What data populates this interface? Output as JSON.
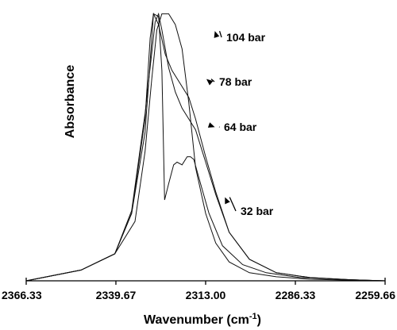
{
  "chart_data": {
    "type": "line",
    "title": "",
    "xlabel": "Wavenumber (cm-1)",
    "xlabel_main": "Wavenumber (cm",
    "xlabel_sup": "-1",
    "xlabel_end": ")",
    "ylabel": "Absorbance",
    "xlim": [
      2366.33,
      2259.66
    ],
    "x_reversed": true,
    "ylim": [
      0,
      1
    ],
    "xticks": [
      2366.33,
      2339.67,
      2313.0,
      2286.33,
      2259.66
    ],
    "xtick_labels": [
      "2366.33",
      "2339.67",
      "2313.00",
      "2286.33",
      "2259.66"
    ],
    "grid": false,
    "series": [
      {
        "name": "104 bar",
        "x": [
          2366.33,
          2350,
          2340,
          2335,
          2331,
          2329,
          2328.5,
          2327,
          2326,
          2325.2,
          2324,
          2322.5,
          2321.5,
          2320,
          2318.5,
          2317.5,
          2316.5,
          2314.5,
          2312,
          2308,
          2302,
          2295,
          2285,
          2270,
          2259.66
        ],
        "y": [
          0.0,
          0.04,
          0.1,
          0.25,
          0.55,
          0.9,
          0.99,
          0.98,
          0.78,
          0.3,
          0.36,
          0.43,
          0.44,
          0.43,
          0.46,
          0.46,
          0.45,
          0.36,
          0.25,
          0.13,
          0.06,
          0.03,
          0.012,
          0.004,
          0.0
        ]
      },
      {
        "name": "78 bar",
        "x": [
          2366.33,
          2350,
          2340,
          2335,
          2331,
          2329.5,
          2328.5,
          2327,
          2325,
          2323,
          2321,
          2318,
          2316,
          2313,
          2310,
          2306,
          2300,
          2292,
          2282,
          2270,
          2259.66
        ],
        "y": [
          0.0,
          0.04,
          0.1,
          0.25,
          0.6,
          0.9,
          0.99,
          0.95,
          0.84,
          0.78,
          0.74,
          0.68,
          0.6,
          0.46,
          0.33,
          0.18,
          0.08,
          0.03,
          0.012,
          0.004,
          0.0
        ]
      },
      {
        "name": "64 bar",
        "x": [
          2366.33,
          2350,
          2340,
          2335,
          2331,
          2328,
          2327,
          2326,
          2324,
          2322,
          2320,
          2318,
          2316,
          2313,
          2310,
          2306,
          2300,
          2292,
          2282,
          2270,
          2259.66
        ],
        "y": [
          0.0,
          0.04,
          0.1,
          0.26,
          0.62,
          0.96,
          0.99,
          0.93,
          0.79,
          0.7,
          0.64,
          0.6,
          0.56,
          0.44,
          0.32,
          0.18,
          0.08,
          0.03,
          0.012,
          0.004,
          0.0
        ]
      },
      {
        "name": "32 bar",
        "x": [
          2366.33,
          2350,
          2340,
          2334,
          2331,
          2329,
          2327.5,
          2326,
          2324,
          2322,
          2320,
          2318,
          2316,
          2313,
          2310,
          2306,
          2300,
          2292,
          2282,
          2270,
          2259.66
        ],
        "y": [
          0.0,
          0.04,
          0.1,
          0.22,
          0.48,
          0.75,
          0.93,
          0.99,
          0.99,
          0.95,
          0.86,
          0.66,
          0.42,
          0.25,
          0.14,
          0.07,
          0.03,
          0.015,
          0.006,
          0.002,
          0.0
        ]
      }
    ],
    "annotations": [
      {
        "text": "104 bar",
        "x": 2310.5,
        "y": 0.926
      },
      {
        "text": "78 bar",
        "x": 2313.0,
        "y": 0.748
      },
      {
        "text": "64 bar",
        "x": 2310.5,
        "y": 0.57
      },
      {
        "text": "32 bar",
        "x": 2307.5,
        "y": 0.31
      }
    ]
  }
}
